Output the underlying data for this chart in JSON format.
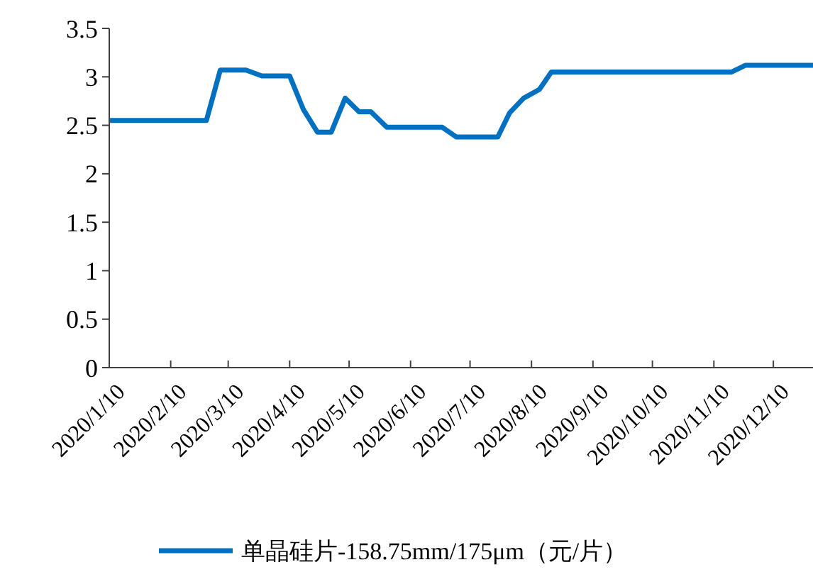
{
  "chart_data": {
    "type": "line",
    "x": [
      "2020-01-10",
      "2020-02-28",
      "2020-03-06",
      "2020-03-19",
      "2020-03-27",
      "2020-04-10",
      "2020-04-17",
      "2020-04-24",
      "2020-05-01",
      "2020-05-08",
      "2020-05-15",
      "2020-05-21",
      "2020-05-29",
      "2020-06-26",
      "2020-07-03",
      "2020-07-24",
      "2020-07-30",
      "2020-08-06",
      "2020-08-14",
      "2020-08-20",
      "2020-11-19",
      "2020-11-26",
      "2020-12-30"
    ],
    "series": [
      {
        "name": "单晶硅片-158.75mm/175μm（元/片）",
        "color": "#0070c0",
        "values": [
          2.55,
          2.55,
          3.07,
          3.07,
          3.01,
          3.01,
          2.66,
          2.43,
          2.43,
          2.78,
          2.64,
          2.64,
          2.48,
          2.48,
          2.38,
          2.38,
          2.63,
          2.78,
          2.87,
          3.05,
          3.05,
          3.12,
          3.12
        ]
      }
    ],
    "xlim": [
      "2020-01-10",
      "2020-12-30"
    ],
    "xticks": [
      {
        "value": "2020-01-10",
        "label": "2020/1/10"
      },
      {
        "value": "2020-02-10",
        "label": "2020/2/10"
      },
      {
        "value": "2020-03-10",
        "label": "2020/3/10"
      },
      {
        "value": "2020-04-10",
        "label": "2020/4/10"
      },
      {
        "value": "2020-05-10",
        "label": "2020/5/10"
      },
      {
        "value": "2020-06-10",
        "label": "2020/6/10"
      },
      {
        "value": "2020-07-10",
        "label": "2020/7/10"
      },
      {
        "value": "2020-08-10",
        "label": "2020/8/10"
      },
      {
        "value": "2020-09-10",
        "label": "2020/9/10"
      },
      {
        "value": "2020-10-10",
        "label": "2020/10/10"
      },
      {
        "value": "2020-11-10",
        "label": "2020/11/10"
      },
      {
        "value": "2020-12-10",
        "label": "2020/12/10"
      }
    ],
    "ylim": [
      0,
      3.5
    ],
    "yticks": [
      {
        "value": 0,
        "label": "0"
      },
      {
        "value": 0.5,
        "label": "0.5"
      },
      {
        "value": 1,
        "label": "1"
      },
      {
        "value": 1.5,
        "label": "1.5"
      },
      {
        "value": 2,
        "label": "2"
      },
      {
        "value": 2.5,
        "label": "2.5"
      },
      {
        "value": 3,
        "label": "3"
      },
      {
        "value": 3.5,
        "label": "3.5"
      }
    ],
    "grid": false,
    "legend": "bottom",
    "marker": "none",
    "line_style": "solid"
  }
}
